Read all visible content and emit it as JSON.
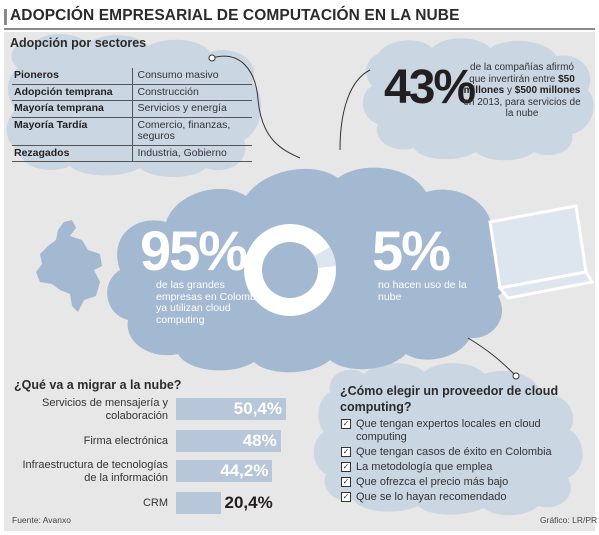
{
  "title": "ADOPCIÓN EMPRESARIAL DE COMPUTACIÓN EN LA NUBE",
  "sectors": {
    "title": "Adopción por sectores",
    "rows": [
      {
        "stage": "Pioneros",
        "sectors": "Consumo masivo"
      },
      {
        "stage": "Adopción temprana",
        "sectors": "Construcción"
      },
      {
        "stage": "Mayoría temprana",
        "sectors": "Servicios y energía"
      },
      {
        "stage": "Mayoría Tardía",
        "sectors": "Comercio, finanzas, seguros"
      },
      {
        "stage": "Rezagados",
        "sectors": "Industria, Gobierno"
      }
    ]
  },
  "stat43": {
    "value": "43%",
    "text_1": "de la compañías afirmó que invertirán entre",
    "bold_1": "$50 millones",
    "text_2": "y",
    "bold_2": "$500 millones",
    "text_3": "en 2013, para servicios de la nube"
  },
  "stat95": {
    "value": "95%",
    "text": "de las grandes empresas en Colombia ya utilizan cloud computing"
  },
  "stat5": {
    "value": "5%",
    "text": "no hacen uso de la nube"
  },
  "migrar": {
    "title": "¿Qué va a migrar a la nube?"
  },
  "chart_data": {
    "type": "bar",
    "orientation": "horizontal",
    "title": "¿Qué va a migrar a la nube?",
    "categories": [
      "Servicios de mensajería y colaboración",
      "Firma electrónica",
      "Infraestructura de tecnologías de la información",
      "CRM"
    ],
    "values": [
      50.4,
      48,
      44.2,
      20.4
    ],
    "value_labels": [
      "50,4%",
      "48%",
      "44,2%",
      "20,4%"
    ],
    "unit": "%",
    "xlim": [
      0,
      55
    ],
    "grid": false,
    "bar_color": "#b8c6d9"
  },
  "pie": {
    "values": [
      95,
      5
    ],
    "labels": [
      "95%",
      "5%"
    ]
  },
  "elegir": {
    "title": "¿Cómo elegir un proveedor de cloud computing?",
    "items": [
      "Que tengan expertos locales en cloud computing",
      "Que tengan casos de éxito en Colombia",
      "La metodología que emplea",
      "Que ofrezca el precio más bajo",
      "Que se lo hayan recomendado"
    ]
  },
  "source": "Fuente: Avanxo",
  "credit": "Gráfico: LR/PR",
  "colors": {
    "background": "#e7e7e7",
    "cloud_light": "#cbd6e3",
    "cloud_main": "#a3b8d1",
    "bar": "#b8c6d9",
    "text": "#231f20"
  },
  "icons": [
    "colombia-map-icon",
    "laptop-icon",
    "donut-chart-icon",
    "checkbox-icon"
  ]
}
